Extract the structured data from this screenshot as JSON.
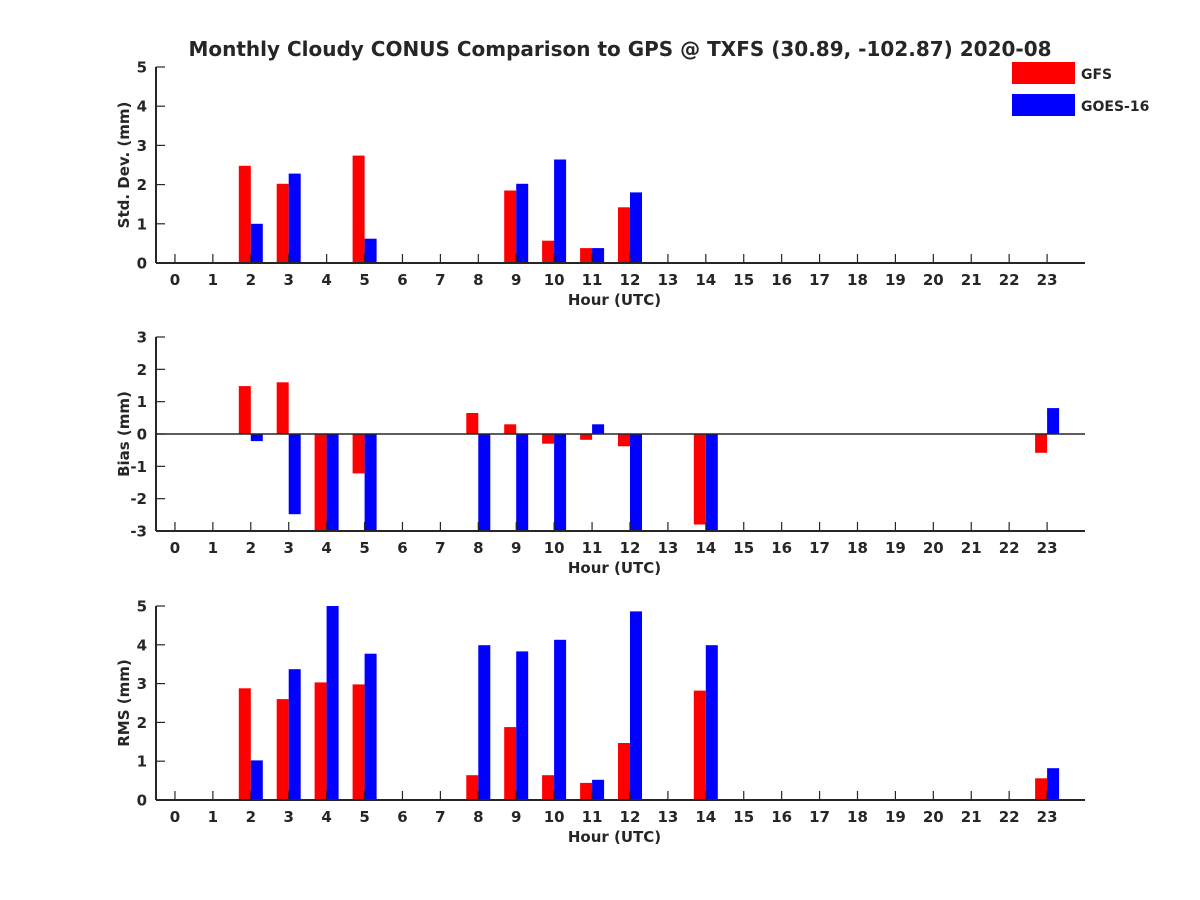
{
  "title": "Monthly Cloudy CONUS Comparison to GPS @ TXFS (30.89, -102.87) 2020-08",
  "legend": {
    "position": "top-right",
    "entries": [
      {
        "name": "GFS",
        "color": "#ff0000"
      },
      {
        "name": "GOES-16",
        "color": "#0000ff"
      }
    ]
  },
  "chart_data": [
    {
      "type": "bar",
      "xlabel": "Hour (UTC)",
      "ylabel": "Std. Dev. (mm)",
      "ylim": [
        0,
        5
      ],
      "yticks": [
        0,
        1,
        2,
        3,
        4,
        5
      ],
      "categories": [
        "0",
        "1",
        "2",
        "3",
        "4",
        "5",
        "6",
        "7",
        "8",
        "9",
        "10",
        "11",
        "12",
        "13",
        "14",
        "15",
        "16",
        "17",
        "18",
        "19",
        "20",
        "21",
        "22",
        "23"
      ],
      "zero_line": false,
      "series": [
        {
          "name": "GFS",
          "color": "#ff0000",
          "values": [
            null,
            null,
            2.48,
            2.02,
            null,
            2.74,
            null,
            null,
            null,
            1.85,
            0.57,
            0.38,
            1.42,
            null,
            null,
            null,
            null,
            null,
            null,
            null,
            null,
            null,
            null,
            null
          ]
        },
        {
          "name": "GOES-16",
          "color": "#0000ff",
          "values": [
            null,
            null,
            1.0,
            2.28,
            null,
            0.62,
            null,
            null,
            null,
            2.02,
            2.64,
            0.38,
            1.8,
            null,
            null,
            null,
            null,
            null,
            null,
            null,
            null,
            null,
            null,
            null
          ]
        }
      ]
    },
    {
      "type": "bar",
      "xlabel": "Hour (UTC)",
      "ylabel": "Bias (mm)",
      "ylim": [
        -3,
        3
      ],
      "yticks": [
        -3,
        -2,
        -1,
        0,
        1,
        2,
        3
      ],
      "categories": [
        "0",
        "1",
        "2",
        "3",
        "4",
        "5",
        "6",
        "7",
        "8",
        "9",
        "10",
        "11",
        "12",
        "13",
        "14",
        "15",
        "16",
        "17",
        "18",
        "19",
        "20",
        "21",
        "22",
        "23"
      ],
      "zero_line": true,
      "series": [
        {
          "name": "GFS",
          "color": "#ff0000",
          "values": [
            null,
            null,
            1.48,
            1.6,
            -3.0,
            -1.22,
            null,
            null,
            0.65,
            0.3,
            -0.3,
            -0.18,
            -0.38,
            null,
            -2.8,
            null,
            null,
            null,
            null,
            null,
            null,
            null,
            null,
            -0.58
          ]
        },
        {
          "name": "GOES-16",
          "color": "#0000ff",
          "values": [
            null,
            null,
            -0.22,
            -2.48,
            -3.0,
            -3.0,
            null,
            null,
            -3.0,
            -3.0,
            -3.0,
            0.3,
            -3.0,
            null,
            -3.0,
            null,
            null,
            null,
            null,
            null,
            null,
            null,
            null,
            0.8
          ]
        }
      ]
    },
    {
      "type": "bar",
      "xlabel": "Hour (UTC)",
      "ylabel": "RMS (mm)",
      "ylim": [
        0,
        5
      ],
      "yticks": [
        0,
        1,
        2,
        3,
        4,
        5
      ],
      "categories": [
        "0",
        "1",
        "2",
        "3",
        "4",
        "5",
        "6",
        "7",
        "8",
        "9",
        "10",
        "11",
        "12",
        "13",
        "14",
        "15",
        "16",
        "17",
        "18",
        "19",
        "20",
        "21",
        "22",
        "23"
      ],
      "zero_line": false,
      "series": [
        {
          "name": "GFS",
          "color": "#ff0000",
          "values": [
            null,
            null,
            2.88,
            2.6,
            3.03,
            2.98,
            null,
            null,
            0.64,
            1.88,
            0.64,
            0.44,
            1.47,
            null,
            2.82,
            null,
            null,
            null,
            null,
            null,
            null,
            null,
            null,
            0.56
          ]
        },
        {
          "name": "GOES-16",
          "color": "#0000ff",
          "values": [
            null,
            null,
            1.02,
            3.37,
            5.0,
            3.77,
            null,
            null,
            3.99,
            3.83,
            4.13,
            0.52,
            4.86,
            null,
            3.99,
            null,
            null,
            null,
            null,
            null,
            null,
            null,
            null,
            0.82
          ]
        }
      ]
    }
  ]
}
